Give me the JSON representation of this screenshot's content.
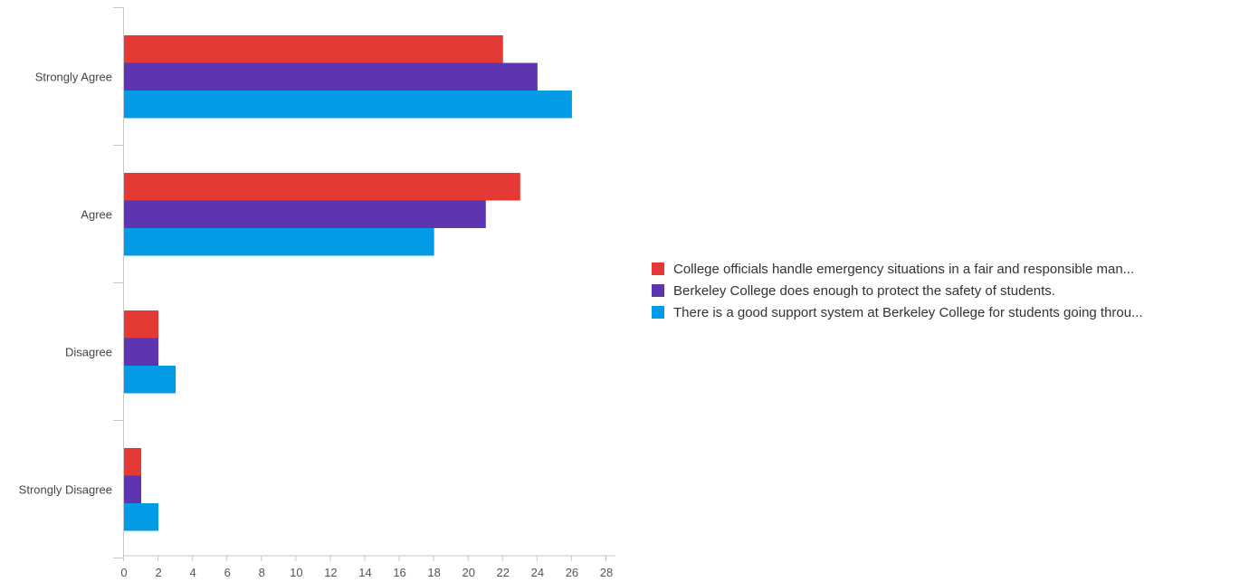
{
  "chart_data": {
    "type": "bar",
    "orientation": "horizontal",
    "categories": [
      "Strongly Agree",
      "Agree",
      "Disagree",
      "Strongly Disagree"
    ],
    "series": [
      {
        "name": "College officials handle emergency situations in a fair and responsible man...",
        "color": "#e53935",
        "values": [
          22,
          23,
          2,
          1
        ]
      },
      {
        "name": "Berkeley College does enough to protect the safety of students.",
        "color": "#5e35b1",
        "values": [
          24,
          21,
          2,
          1
        ]
      },
      {
        "name": "There is a good support system at Berkeley College for students going throu...",
        "color": "#039be5",
        "values": [
          26,
          18,
          3,
          2
        ]
      }
    ],
    "xlim": [
      0,
      28
    ],
    "x_ticks": [
      "0",
      "2",
      "4",
      "6",
      "8",
      "10",
      "12",
      "14",
      "16",
      "18",
      "20",
      "22",
      "24",
      "26",
      "28"
    ],
    "grid": false,
    "legend_position": "right"
  }
}
